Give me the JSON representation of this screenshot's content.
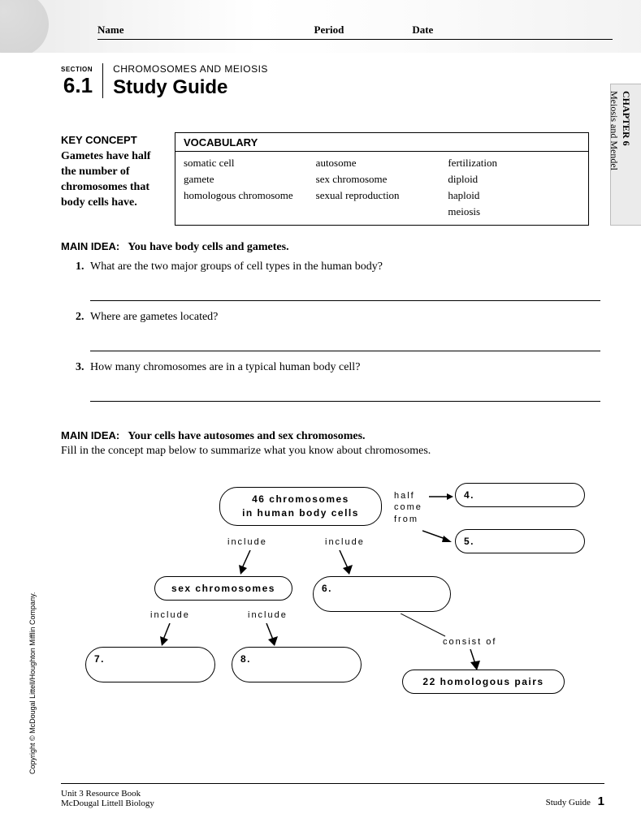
{
  "header": {
    "name": "Name",
    "period": "Period",
    "date": "Date"
  },
  "section": {
    "label": "SECTION",
    "number": "6.1",
    "overline": "CHROMOSOMES AND MEIOSIS",
    "title": "Study Guide"
  },
  "chapter_tab": {
    "line1": "CHAPTER 6",
    "line2": "Meiosis and Mendel"
  },
  "key_concept": {
    "title": "KEY CONCEPT",
    "text": "Gametes have half the number of chromosomes that body cells have."
  },
  "vocabulary": {
    "title": "VOCABULARY",
    "col1": [
      "somatic cell",
      "gamete",
      "homologous chromosome"
    ],
    "col2": [
      "autosome",
      "sex chromosome",
      "sexual reproduction"
    ],
    "col3": [
      "fertilization",
      "diploid",
      "haploid",
      "meiosis"
    ]
  },
  "main_idea_1": {
    "label": "MAIN IDEA:",
    "text": "You have body cells and gametes.",
    "questions": [
      {
        "n": "1.",
        "q": "What are the two major groups of cell types in the human body?"
      },
      {
        "n": "2.",
        "q": "Where are gametes located?"
      },
      {
        "n": "3.",
        "q": "How many chromosomes are in a typical human body cell?"
      }
    ]
  },
  "main_idea_2": {
    "label": "MAIN IDEA:",
    "text": "Your cells have autosomes and sex chromosomes.",
    "instruction": "Fill in the concept map below to summarize what you know about chromosomes."
  },
  "concept_map": {
    "bubbles": {
      "top": "46 chromosomes\nin human body cells",
      "sex": "sex chromosomes",
      "b4": "4.",
      "b5": "5.",
      "b6": "6.",
      "b7": "7.",
      "b8": "8.",
      "homolog": "22 homologous pairs"
    },
    "connectors": {
      "half": "half\ncome\nfrom",
      "include": "include",
      "consist": "consist of"
    }
  },
  "copyright": "Copyright © McDougal Littell/Houghton Mifflin Company.",
  "footer": {
    "left1": "Unit 3 Resource Book",
    "left2": "McDougal Littell Biology",
    "right": "Study Guide",
    "page": "1"
  }
}
